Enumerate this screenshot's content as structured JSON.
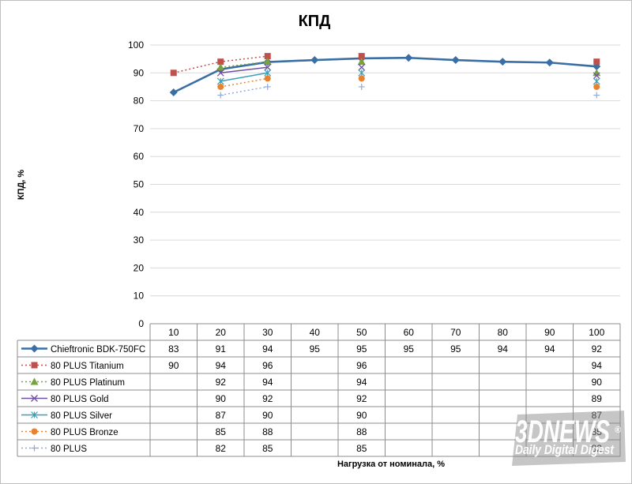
{
  "chart_data": {
    "type": "line",
    "title": "КПД",
    "xlabel": "Нагрузка от номинала, %",
    "ylabel": "КПД, %",
    "ylim": [
      0,
      100
    ],
    "yticks": [
      0,
      10,
      20,
      30,
      40,
      50,
      60,
      70,
      80,
      90,
      100
    ],
    "grid": true,
    "legend": "data-table",
    "categories": [
      "10",
      "20",
      "30",
      "40",
      "50",
      "60",
      "70",
      "80",
      "90",
      "100"
    ],
    "series": [
      {
        "name": "Chieftronic BDK-750FC",
        "color": "#3a6ea5",
        "marker": "diamond",
        "style": "solid",
        "values": [
          83,
          91,
          94,
          95,
          95,
          95,
          95,
          94,
          94,
          92
        ],
        "plot": [
          83,
          91.3,
          93.9,
          94.6,
          95.2,
          95.4,
          94.6,
          94.0,
          93.7,
          92.3
        ]
      },
      {
        "name": "80 PLUS Titanium",
        "color": "#c0504d",
        "marker": "square",
        "style": "dotted",
        "values": [
          90,
          94,
          96,
          null,
          96,
          null,
          null,
          null,
          null,
          94
        ]
      },
      {
        "name": "80 PLUS Platinum",
        "color": "#77a33c",
        "marker": "triangle",
        "style": "dotted",
        "values": [
          null,
          92,
          94,
          null,
          94,
          null,
          null,
          null,
          null,
          90
        ]
      },
      {
        "name": "80 PLUS Gold",
        "color": "#7050a0",
        "marker": "x",
        "style": "solid",
        "values": [
          null,
          90,
          92,
          null,
          92,
          null,
          null,
          null,
          null,
          89
        ]
      },
      {
        "name": "80 PLUS Silver",
        "color": "#3aa0b8",
        "marker": "star",
        "style": "solid",
        "values": [
          null,
          87,
          90,
          null,
          90,
          null,
          null,
          null,
          null,
          87
        ]
      },
      {
        "name": "80 PLUS Bronze",
        "color": "#e8822e",
        "marker": "circle",
        "style": "dotted",
        "values": [
          null,
          85,
          88,
          null,
          88,
          null,
          null,
          null,
          null,
          85
        ]
      },
      {
        "name": "80 PLUS",
        "color": "#8fa8dc",
        "marker": "plus",
        "style": "dotted",
        "values": [
          null,
          82,
          85,
          null,
          85,
          null,
          null,
          null,
          null,
          82
        ]
      }
    ]
  },
  "watermark": {
    "logo": "3DNEWS",
    "tagline": "Daily Digital Digest",
    "mark": "®"
  }
}
